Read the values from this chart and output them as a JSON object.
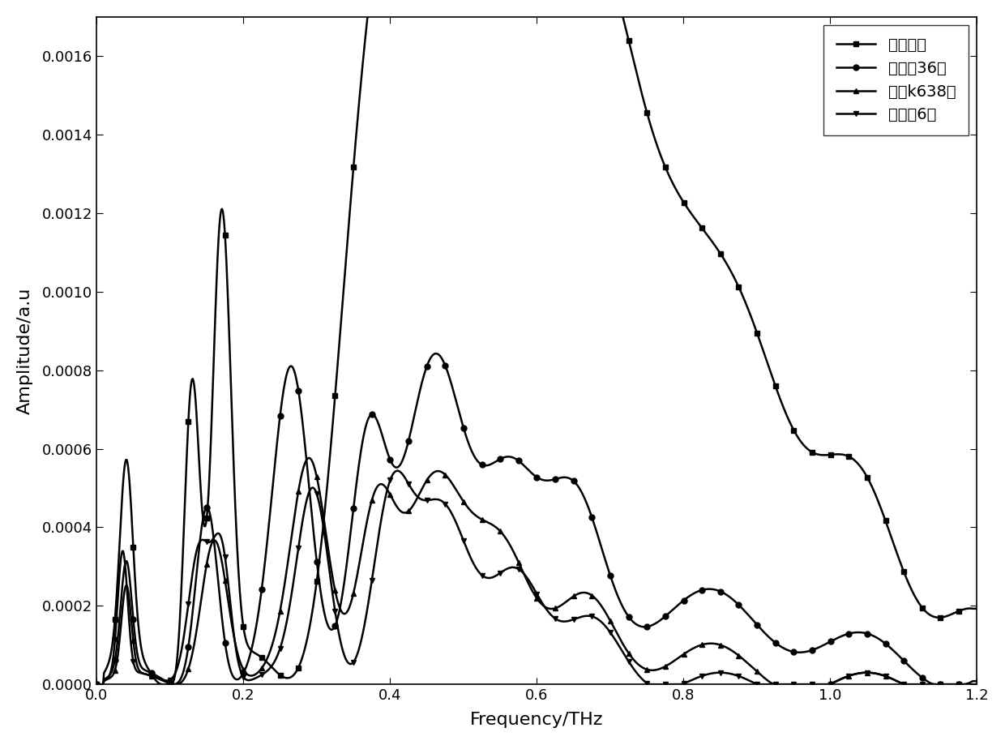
{
  "title": "",
  "xlabel": "Frequency/THz",
  "ylabel": "Amplitude/a.u",
  "xlim": [
    0.0,
    1.2
  ],
  "ylim": [
    0.0,
    0.0017
  ],
  "legend_labels": [
    "参考信号",
    "鲁研棰36号",
    "鑫秋k638号",
    "新陆中6号"
  ],
  "line_color": "#000000",
  "background_color": "#ffffff",
  "yticks": [
    0.0,
    0.0002,
    0.0004,
    0.0006,
    0.0008,
    0.001,
    0.0012,
    0.0014,
    0.0016
  ],
  "xticks": [
    0.0,
    0.2,
    0.4,
    0.6,
    0.8,
    1.0,
    1.2
  ]
}
